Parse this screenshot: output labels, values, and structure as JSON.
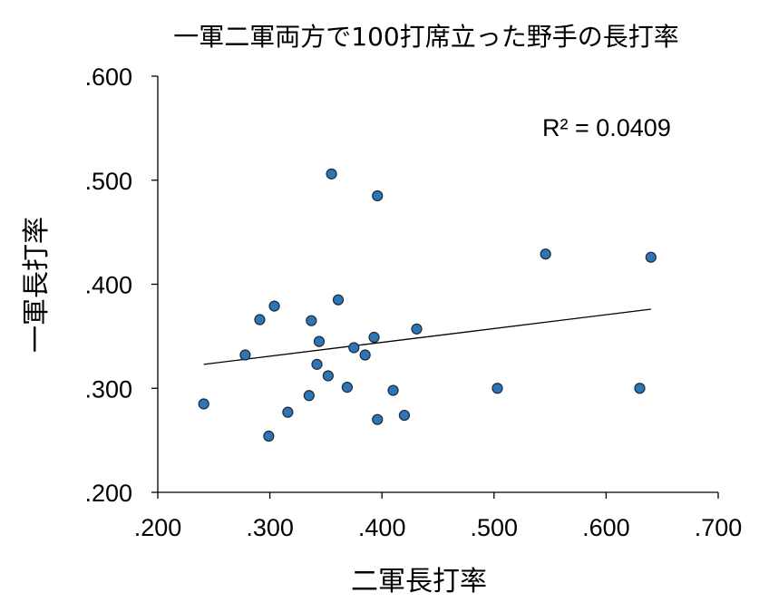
{
  "chart_data": {
    "type": "scatter",
    "title": "一軍二軍両方で100打席立った野手の長打率",
    "xlabel": "二軍長打率",
    "ylabel": "一軍長打率",
    "xlim": [
      0.2,
      0.7
    ],
    "ylim": [
      0.2,
      0.6
    ],
    "x_ticks": [
      ".200",
      ".300",
      ".400",
      ".500",
      ".600",
      ".700"
    ],
    "y_ticks": [
      ".200",
      ".300",
      ".400",
      ".500",
      ".600"
    ],
    "grid": false,
    "legend": "none",
    "annotation": "R² = 0.0409",
    "point_color": "#2e75b6",
    "trendline": {
      "type": "linear",
      "x": [
        0.241,
        0.64
      ],
      "y": [
        0.323,
        0.376
      ]
    },
    "series": [
      {
        "points": [
          {
            "x": 0.241,
            "y": 0.285
          },
          {
            "x": 0.278,
            "y": 0.332
          },
          {
            "x": 0.291,
            "y": 0.366
          },
          {
            "x": 0.299,
            "y": 0.254
          },
          {
            "x": 0.304,
            "y": 0.379
          },
          {
            "x": 0.316,
            "y": 0.277
          },
          {
            "x": 0.335,
            "y": 0.293
          },
          {
            "x": 0.337,
            "y": 0.365
          },
          {
            "x": 0.342,
            "y": 0.323
          },
          {
            "x": 0.344,
            "y": 0.345
          },
          {
            "x": 0.352,
            "y": 0.312
          },
          {
            "x": 0.355,
            "y": 0.506
          },
          {
            "x": 0.361,
            "y": 0.385
          },
          {
            "x": 0.369,
            "y": 0.301
          },
          {
            "x": 0.375,
            "y": 0.339
          },
          {
            "x": 0.385,
            "y": 0.332
          },
          {
            "x": 0.393,
            "y": 0.349
          },
          {
            "x": 0.396,
            "y": 0.485
          },
          {
            "x": 0.396,
            "y": 0.27
          },
          {
            "x": 0.41,
            "y": 0.298
          },
          {
            "x": 0.42,
            "y": 0.274
          },
          {
            "x": 0.431,
            "y": 0.357
          },
          {
            "x": 0.503,
            "y": 0.3
          },
          {
            "x": 0.546,
            "y": 0.429
          },
          {
            "x": 0.63,
            "y": 0.3
          },
          {
            "x": 0.64,
            "y": 0.426
          }
        ]
      }
    ]
  }
}
